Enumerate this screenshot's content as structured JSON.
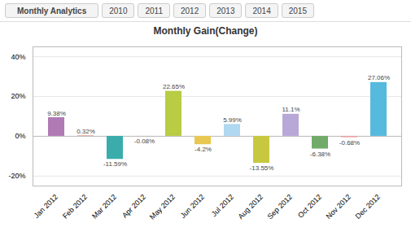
{
  "chart_data": {
    "type": "bar",
    "title": "Monthly Gain(Change)",
    "annotations": [
      "Monthly Analytics",
      "2010",
      "2011",
      "2012",
      "2013",
      "2014",
      "2015"
    ],
    "categories": [
      "Jan 2012",
      "Feb 2012",
      "Mar 2012",
      "Apr 2012",
      "May 2012",
      "Jun 2012",
      "Jul 2012",
      "Aug 2012",
      "Sep 2012",
      "Oct 2012",
      "Nov 2012",
      "Dec 2012"
    ],
    "values": [
      9.38,
      0.32,
      -11.59,
      -0.08,
      22.65,
      -4.2,
      5.99,
      -13.55,
      11.1,
      -6.38,
      -0.68,
      27.06
    ],
    "value_labels": [
      "9.38%",
      "0.32%",
      "-11.59%",
      "-0.08%",
      "22.65%",
      "-4.2%",
      "5.99%",
      "-13.55%",
      "11.1%",
      "-6.38%",
      "-0.68%",
      "27.06%"
    ],
    "colors": [
      "#b07ab5",
      "#e8a0a0",
      "#3aacac",
      "#e8a0a0",
      "#b8cc44",
      "#e8c850",
      "#b0d8f0",
      "#c8c840",
      "#b8a8d8",
      "#72aa6a",
      "#e8a0a0",
      "#55bade"
    ],
    "ylim": [
      -25,
      45
    ],
    "yticks": [
      {
        "value": -20,
        "label": "-20%"
      },
      {
        "value": 0,
        "label": "0%"
      },
      {
        "value": 20,
        "label": "20%"
      },
      {
        "value": 40,
        "label": "40%"
      }
    ],
    "grid": true,
    "data_labels": true
  }
}
